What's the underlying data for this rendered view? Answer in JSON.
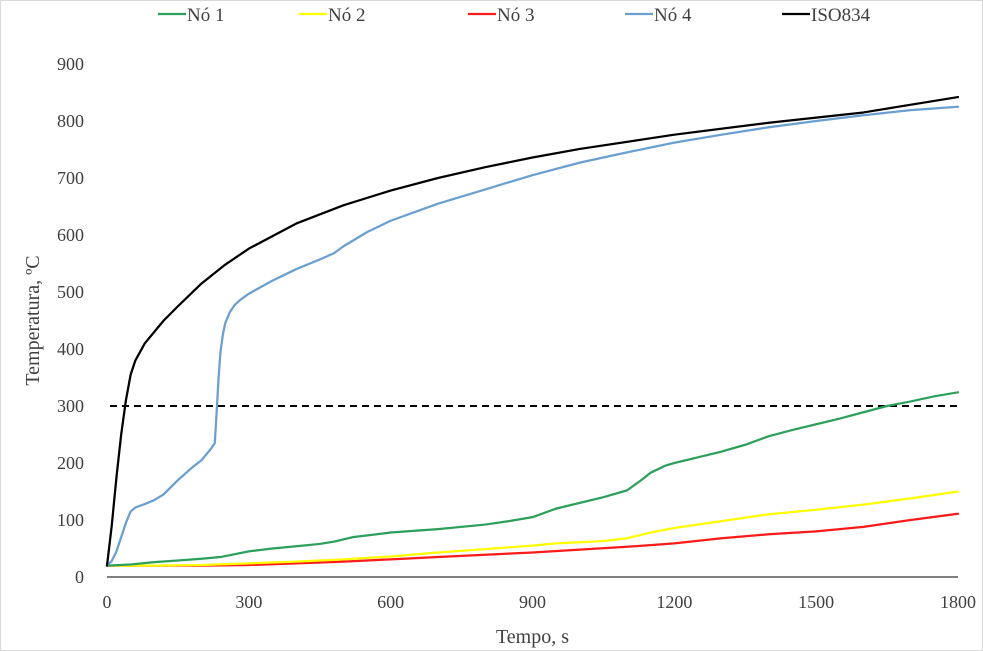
{
  "chart_data": {
    "type": "line",
    "title": "",
    "xlabel": "Tempo, s",
    "ylabel": "Temperatura, ºC",
    "xlim": [
      0,
      1800
    ],
    "ylim": [
      0,
      900
    ],
    "xticks": [
      "0",
      "300",
      "600",
      "900",
      "1200",
      "1500",
      "1800"
    ],
    "yticks": [
      "0",
      "100",
      "200",
      "300",
      "400",
      "500",
      "600",
      "700",
      "800",
      "900"
    ],
    "grid": false,
    "legend_position": "top",
    "reference_line": {
      "y": 300,
      "style": "dashed",
      "color": "#000000"
    },
    "series": [
      {
        "name": "Nó 1",
        "color": "#2ca05a",
        "x": [
          0,
          50,
          100,
          150,
          200,
          240,
          300,
          350,
          400,
          450,
          480,
          520,
          600,
          700,
          800,
          850,
          900,
          950,
          1000,
          1050,
          1100,
          1130,
          1150,
          1180,
          1200,
          1250,
          1300,
          1350,
          1400,
          1450,
          1500,
          1550,
          1600,
          1650,
          1700,
          1750,
          1800
        ],
        "y": [
          20,
          22,
          26,
          29,
          32,
          35,
          45,
          50,
          54,
          58,
          62,
          70,
          78,
          84,
          92,
          98,
          105,
          120,
          130,
          140,
          152,
          170,
          183,
          195,
          200,
          210,
          220,
          232,
          247,
          258,
          268,
          278,
          289,
          300,
          308,
          317,
          324
        ]
      },
      {
        "name": "Nó 2",
        "color": "#ffff00",
        "x": [
          0,
          100,
          200,
          300,
          400,
          500,
          600,
          700,
          800,
          900,
          950,
          1000,
          1050,
          1100,
          1150,
          1200,
          1300,
          1400,
          1500,
          1600,
          1700,
          1800
        ],
        "y": [
          20,
          20,
          21,
          24,
          27,
          31,
          36,
          43,
          49,
          55,
          59,
          61,
          63,
          68,
          78,
          86,
          98,
          110,
          118,
          127,
          138,
          150
        ]
      },
      {
        "name": "Nó 3",
        "color": "#ff1a1a",
        "x": [
          0,
          100,
          200,
          300,
          400,
          500,
          600,
          700,
          800,
          900,
          1000,
          1100,
          1200,
          1300,
          1400,
          1500,
          1600,
          1700,
          1800
        ],
        "y": [
          20,
          20,
          20,
          21,
          24,
          27,
          31,
          35,
          39,
          43,
          48,
          53,
          59,
          68,
          75,
          80,
          88,
          100,
          111
        ]
      },
      {
        "name": "Nó 4",
        "color": "#6a9fd0",
        "x": [
          0,
          10,
          20,
          30,
          40,
          50,
          60,
          80,
          100,
          120,
          150,
          180,
          200,
          220,
          228,
          232,
          236,
          240,
          245,
          250,
          260,
          270,
          280,
          300,
          350,
          400,
          450,
          480,
          500,
          550,
          600,
          700,
          800,
          900,
          1000,
          1100,
          1200,
          1300,
          1400,
          1500,
          1600,
          1700,
          1800
        ],
        "y": [
          20,
          28,
          45,
          70,
          95,
          115,
          122,
          128,
          135,
          145,
          170,
          192,
          205,
          225,
          235,
          290,
          350,
          395,
          425,
          445,
          465,
          477,
          485,
          497,
          520,
          540,
          557,
          568,
          580,
          605,
          625,
          655,
          680,
          705,
          727,
          745,
          762,
          776,
          789,
          800,
          810,
          819,
          825
        ]
      },
      {
        "name": "ISO834",
        "color": "#000000",
        "x": [
          0,
          10,
          20,
          30,
          40,
          50,
          60,
          80,
          100,
          120,
          150,
          200,
          250,
          300,
          400,
          500,
          600,
          700,
          800,
          900,
          1000,
          1200,
          1400,
          1600,
          1800
        ],
        "y": [
          20,
          90,
          175,
          250,
          310,
          355,
          380,
          410,
          430,
          450,
          475,
          515,
          548,
          576,
          620,
          652,
          678,
          700,
          719,
          736,
          751,
          776,
          797,
          815,
          842
        ]
      }
    ]
  }
}
